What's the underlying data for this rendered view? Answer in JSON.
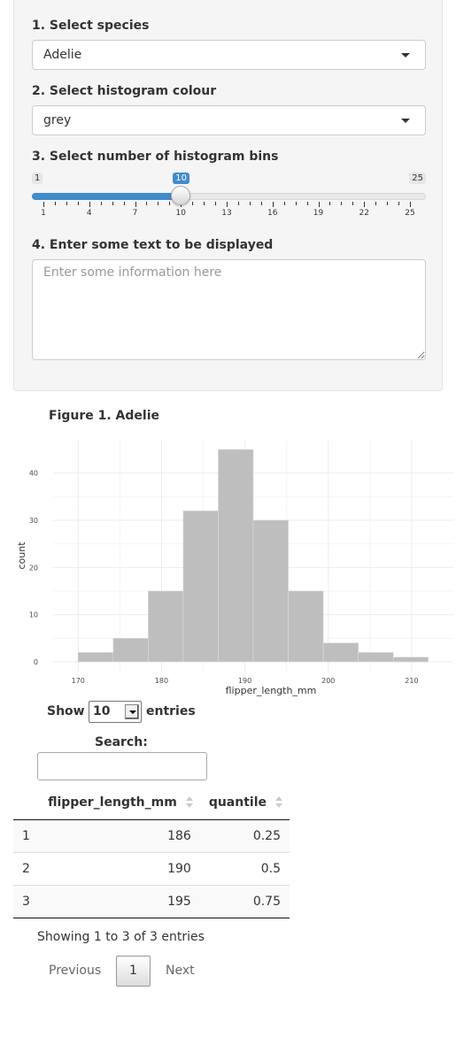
{
  "controls": {
    "species_label": "1. Select species",
    "species_value": "Adelie",
    "colour_label": "2. Select histogram colour",
    "colour_value": "grey",
    "bins_label": "3. Select number of histogram bins",
    "bins": {
      "min": 1,
      "max": 25,
      "value": 10,
      "ticks": [
        1,
        4,
        7,
        10,
        13,
        16,
        19,
        22,
        25
      ]
    },
    "text_label": "4. Enter some text to be displayed",
    "text_placeholder": "Enter some information here"
  },
  "figure": {
    "caption": "Figure 1. Adelie"
  },
  "chart_data": {
    "type": "bar",
    "bar_color": "#bebebe",
    "bin_edges": [
      170,
      174.2,
      178.4,
      182.6,
      186.8,
      191,
      195.2,
      199.4,
      203.6,
      207.8,
      212
    ],
    "values": [
      2,
      5,
      15,
      32,
      45,
      30,
      15,
      4,
      2,
      1
    ],
    "xlabel": "flipper_length_mm",
    "ylabel": "count",
    "x_ticks": [
      170,
      180,
      190,
      200,
      210
    ],
    "y_ticks": [
      0,
      10,
      20,
      30,
      40
    ],
    "xlim": [
      167,
      215
    ],
    "ylim": [
      0,
      45
    ],
    "grid": true
  },
  "table": {
    "show_label": "Show",
    "length_value": "10",
    "entries_label": "entries",
    "search_label": "Search:",
    "columns": [
      "",
      "flipper_length_mm",
      "quantile"
    ],
    "rows": [
      [
        "1",
        "186",
        "0.25"
      ],
      [
        "2",
        "190",
        "0.5"
      ],
      [
        "3",
        "195",
        "0.75"
      ]
    ],
    "info": "Showing 1 to 3 of 3 entries",
    "previous": "Previous",
    "current_page": "1",
    "next": "Next"
  }
}
